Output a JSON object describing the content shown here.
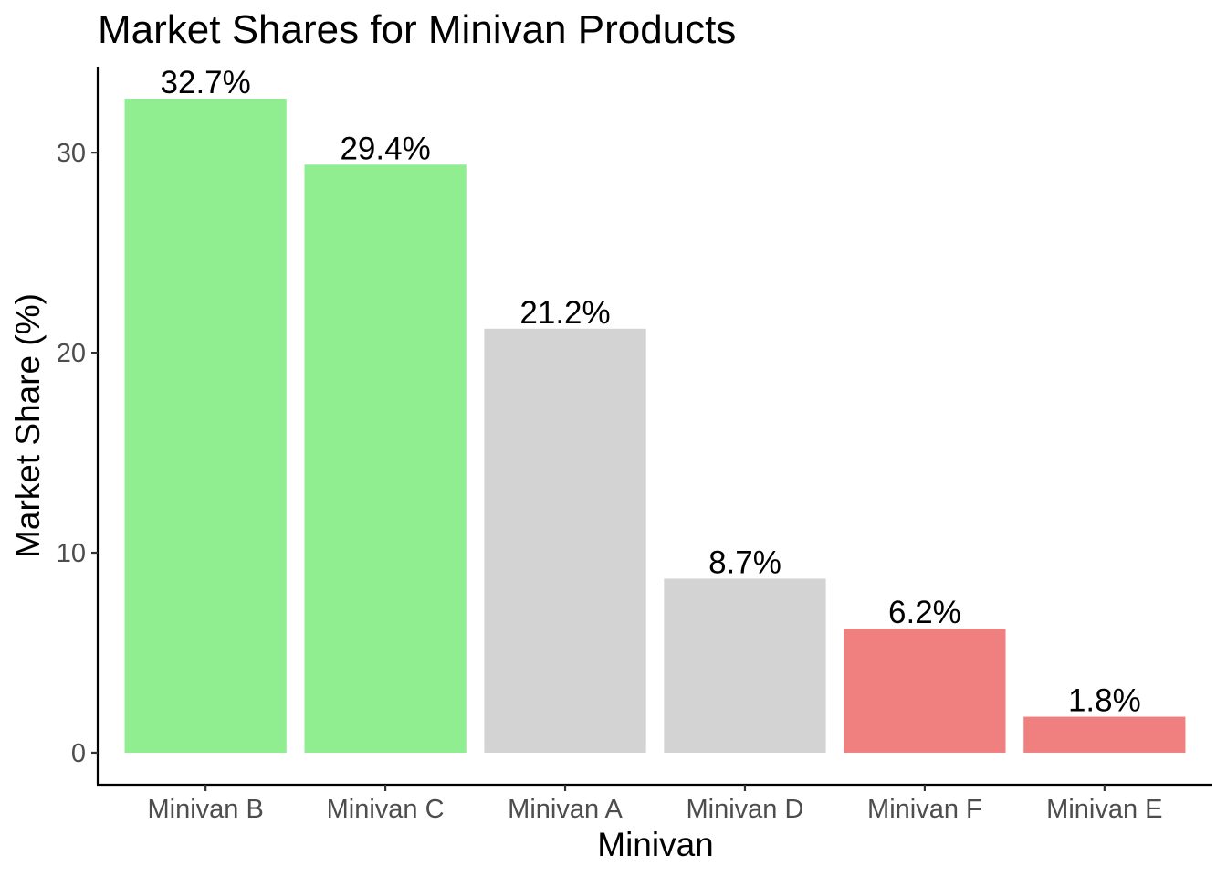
{
  "chart_data": {
    "type": "bar",
    "title": "Market Shares for Minivan Products",
    "xlabel": "Minivan",
    "ylabel": "Market Share (%)",
    "categories": [
      "Minivan B",
      "Minivan C",
      "Minivan A",
      "Minivan D",
      "Minivan F",
      "Minivan E"
    ],
    "values": [
      32.7,
      29.4,
      21.2,
      8.7,
      6.2,
      1.8
    ],
    "data_labels": [
      "32.7%",
      "29.4%",
      "21.2%",
      "8.7%",
      "6.2%",
      "1.8%"
    ],
    "bar_colors": [
      "#90ee90",
      "#90ee90",
      "#d3d3d3",
      "#d3d3d3",
      "#f08080",
      "#f08080"
    ],
    "yticks": [
      0,
      10,
      20,
      30
    ],
    "ytick_labels": [
      "0",
      "10",
      "20",
      "30"
    ],
    "ylim": [
      -1.6,
      34.3
    ],
    "grid": false,
    "legend": "none"
  }
}
